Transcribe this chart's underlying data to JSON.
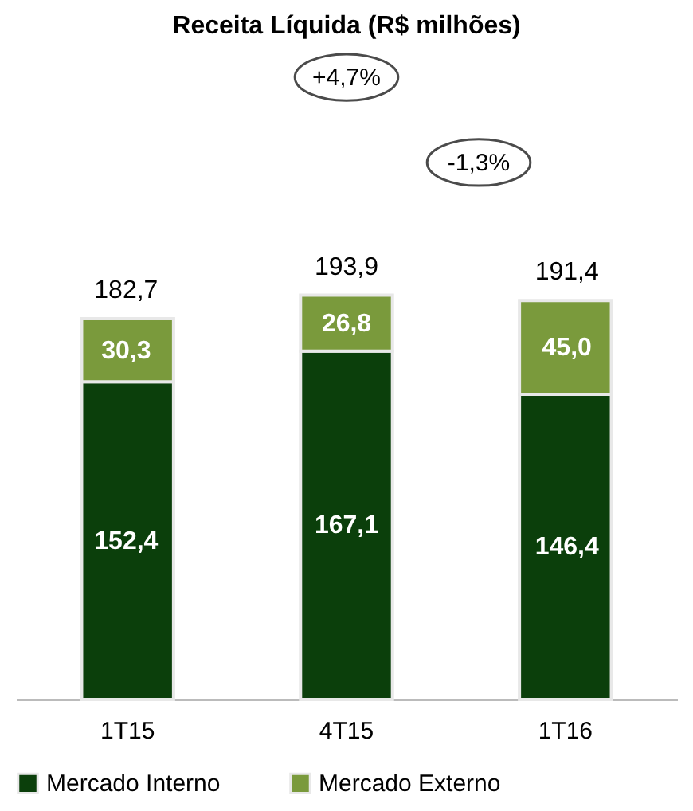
{
  "chart_data": {
    "type": "bar",
    "title": "Receita Líquida (R$ milhões)",
    "categories": [
      "1T15",
      "4T15",
      "1T16"
    ],
    "stacked": true,
    "series": [
      {
        "name": "Mercado Interno",
        "color": "#0b3f0b",
        "values": [
          152.4,
          167.1,
          146.4
        ],
        "value_labels": [
          "152,4",
          "167,1",
          "146,4"
        ]
      },
      {
        "name": "Mercado Externo",
        "color": "#7a9a3c",
        "values": [
          30.3,
          26.8,
          45.0
        ],
        "value_labels": [
          "30,3",
          "26,8",
          "45,0"
        ]
      }
    ],
    "totals": [
      "182,7",
      "193,9",
      "191,4"
    ],
    "annotations": [
      "+4,7%",
      "-1,3%"
    ],
    "legend": "bottom",
    "grid": false
  }
}
